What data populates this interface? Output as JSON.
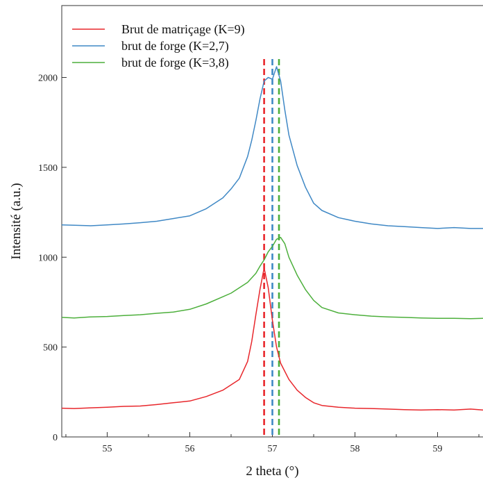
{
  "chart_data": {
    "type": "line",
    "xlabel": "2 theta (°)",
    "ylabel": "Intensité (a.u.)",
    "xlim": [
      54.45,
      59.55
    ],
    "ylim": [
      0,
      2400
    ],
    "xticks": [
      55,
      56,
      57,
      58,
      59
    ],
    "yticks": [
      0,
      500,
      1000,
      1500,
      2000
    ],
    "xtick_labels": [
      "55",
      "56",
      "57",
      "58",
      "59"
    ],
    "ytick_labels": [
      "0",
      "500",
      "1000",
      "1500",
      "2000"
    ],
    "grid": false,
    "legend_position": "top-left",
    "series": [
      {
        "name": "Brut de matriçage (K=9)",
        "color": "#e8262b",
        "peak_marker": 56.9,
        "x": [
          54.45,
          54.6,
          54.8,
          55.0,
          55.2,
          55.4,
          55.6,
          55.8,
          56.0,
          56.2,
          56.4,
          56.5,
          56.6,
          56.7,
          56.75,
          56.8,
          56.85,
          56.9,
          56.95,
          57.0,
          57.05,
          57.1,
          57.2,
          57.3,
          57.4,
          57.5,
          57.6,
          57.8,
          58.0,
          58.2,
          58.4,
          58.6,
          58.8,
          59.0,
          59.2,
          59.4,
          59.55
        ],
        "y": [
          160,
          158,
          162,
          165,
          170,
          172,
          180,
          190,
          200,
          225,
          260,
          290,
          320,
          420,
          530,
          680,
          820,
          940,
          830,
          650,
          500,
          410,
          320,
          260,
          220,
          190,
          175,
          165,
          160,
          158,
          155,
          152,
          150,
          152,
          150,
          155,
          150
        ]
      },
      {
        "name": "brut de forge (K=2,7)",
        "color": "#3f88c5",
        "peak_marker": 57.0,
        "x": [
          54.45,
          54.6,
          54.8,
          55.0,
          55.2,
          55.4,
          55.6,
          55.8,
          56.0,
          56.2,
          56.4,
          56.5,
          56.6,
          56.7,
          56.75,
          56.8,
          56.85,
          56.9,
          56.95,
          57.0,
          57.05,
          57.1,
          57.15,
          57.2,
          57.3,
          57.4,
          57.5,
          57.6,
          57.8,
          58.0,
          58.2,
          58.4,
          58.6,
          58.8,
          59.0,
          59.2,
          59.4,
          59.55
        ],
        "y": [
          1180,
          1178,
          1175,
          1180,
          1185,
          1192,
          1200,
          1215,
          1230,
          1270,
          1330,
          1380,
          1440,
          1560,
          1650,
          1760,
          1880,
          1980,
          2000,
          1990,
          2060,
          1980,
          1820,
          1680,
          1510,
          1390,
          1300,
          1260,
          1220,
          1200,
          1185,
          1175,
          1170,
          1165,
          1160,
          1165,
          1160,
          1160
        ]
      },
      {
        "name": "brut de forge (K=3,8)",
        "color": "#4caf3b",
        "peak_marker": 57.08,
        "x": [
          54.45,
          54.6,
          54.8,
          55.0,
          55.2,
          55.4,
          55.6,
          55.8,
          56.0,
          56.2,
          56.4,
          56.5,
          56.6,
          56.7,
          56.8,
          56.85,
          56.9,
          56.95,
          57.0,
          57.05,
          57.1,
          57.15,
          57.2,
          57.3,
          57.4,
          57.5,
          57.6,
          57.8,
          58.0,
          58.2,
          58.4,
          58.6,
          58.8,
          59.0,
          59.2,
          59.4,
          59.55
        ],
        "y": [
          665,
          662,
          668,
          670,
          675,
          680,
          688,
          695,
          710,
          740,
          780,
          800,
          830,
          860,
          910,
          950,
          985,
          1030,
          1060,
          1100,
          1110,
          1075,
          1000,
          900,
          820,
          760,
          720,
          690,
          680,
          672,
          668,
          665,
          662,
          660,
          660,
          658,
          660
        ]
      }
    ]
  }
}
